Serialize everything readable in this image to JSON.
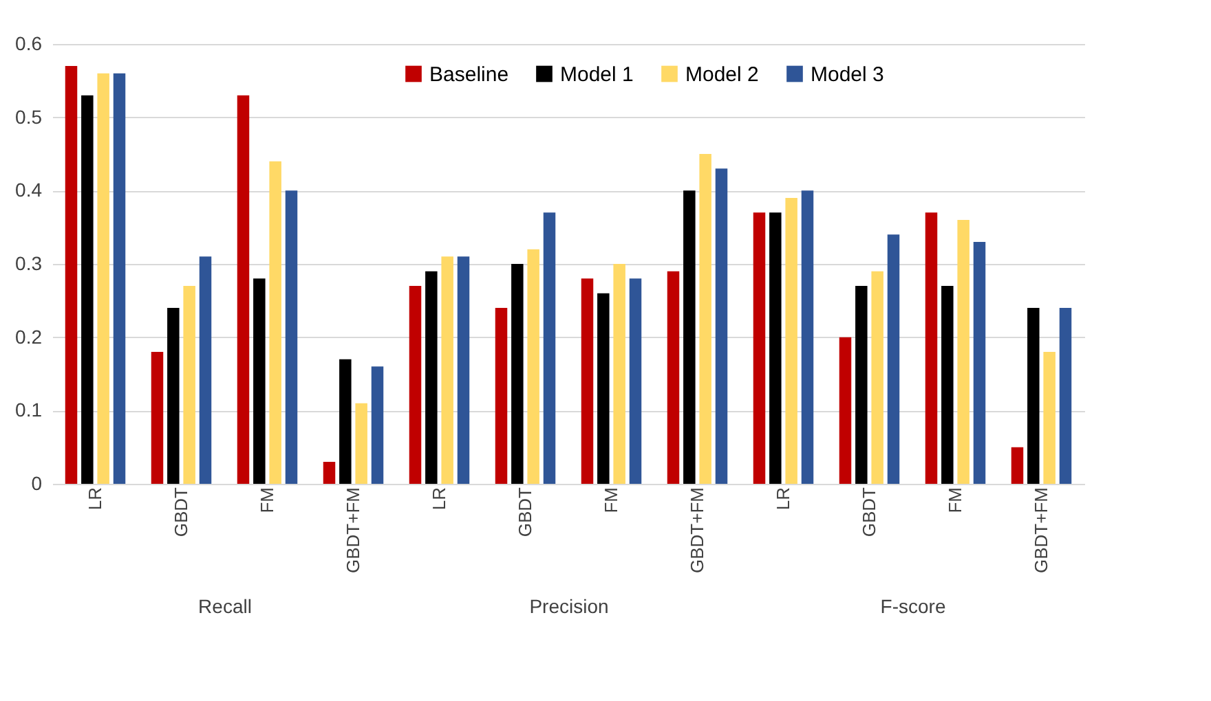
{
  "chart_data": [
    {
      "type": "bar",
      "xlabel": "Recall",
      "categories": [
        "LR",
        "GBDT",
        "FM",
        "GBDT+FM"
      ],
      "ylim": [
        0,
        0.6
      ],
      "yticks": [
        0,
        0.1,
        0.2,
        0.3,
        0.4,
        0.5,
        0.6
      ],
      "grid": "y",
      "legend": "top right",
      "series": [
        {
          "name": "Baseline",
          "color": "#c00000",
          "values": [
            0.57,
            0.18,
            0.53,
            0.03
          ]
        },
        {
          "name": "Model 1",
          "color": "#000000",
          "values": [
            0.53,
            0.24,
            0.28,
            0.17
          ]
        },
        {
          "name": "Model 2",
          "color": "#ffd966",
          "values": [
            0.56,
            0.27,
            0.44,
            0.11
          ]
        },
        {
          "name": "Model 3",
          "color": "#2f5597",
          "values": [
            0.56,
            0.31,
            0.4,
            0.16
          ]
        }
      ]
    },
    {
      "type": "bar",
      "xlabel": "Precision",
      "categories": [
        "LR",
        "GBDT",
        "FM",
        "GBDT+FM"
      ],
      "ylim": [
        0,
        0.6
      ],
      "yticks": [
        0,
        0.1,
        0.2,
        0.3,
        0.4,
        0.5,
        0.6
      ],
      "grid": "y",
      "tick_labels": "x",
      "series": [
        {
          "color": "#c00000",
          "values": [
            0.27,
            0.24,
            0.28,
            0.29
          ]
        },
        {
          "color": "#000000",
          "values": [
            0.29,
            0.3,
            0.26,
            0.4
          ]
        },
        {
          "color": "#ffd966",
          "values": [
            0.31,
            0.32,
            0.3,
            0.45
          ]
        },
        {
          "color": "#2f5597",
          "values": [
            0.31,
            0.37,
            0.28,
            0.43
          ]
        }
      ]
    },
    {
      "type": "bar",
      "xlabel": "F-score",
      "categories": [
        "LR",
        "GBDT",
        "FM",
        "GBDT+FM"
      ],
      "ylim": [
        0,
        0.6
      ],
      "yticks": [
        0,
        0.1,
        0.2,
        0.3,
        0.4,
        0.5,
        0.6
      ],
      "grid": "y",
      "tick_labels": "x",
      "series": [
        {
          "color": "#c00000",
          "values": [
            0.37,
            0.2,
            0.37,
            0.05
          ]
        },
        {
          "color": "#000000",
          "values": [
            0.37,
            0.27,
            0.27,
            0.24
          ]
        },
        {
          "color": "#ffd966",
          "values": [
            0.39,
            0.29,
            0.36,
            0.18
          ]
        },
        {
          "color": "#2f5597",
          "values": [
            0.4,
            0.34,
            0.33,
            0.24
          ]
        }
      ]
    }
  ]
}
